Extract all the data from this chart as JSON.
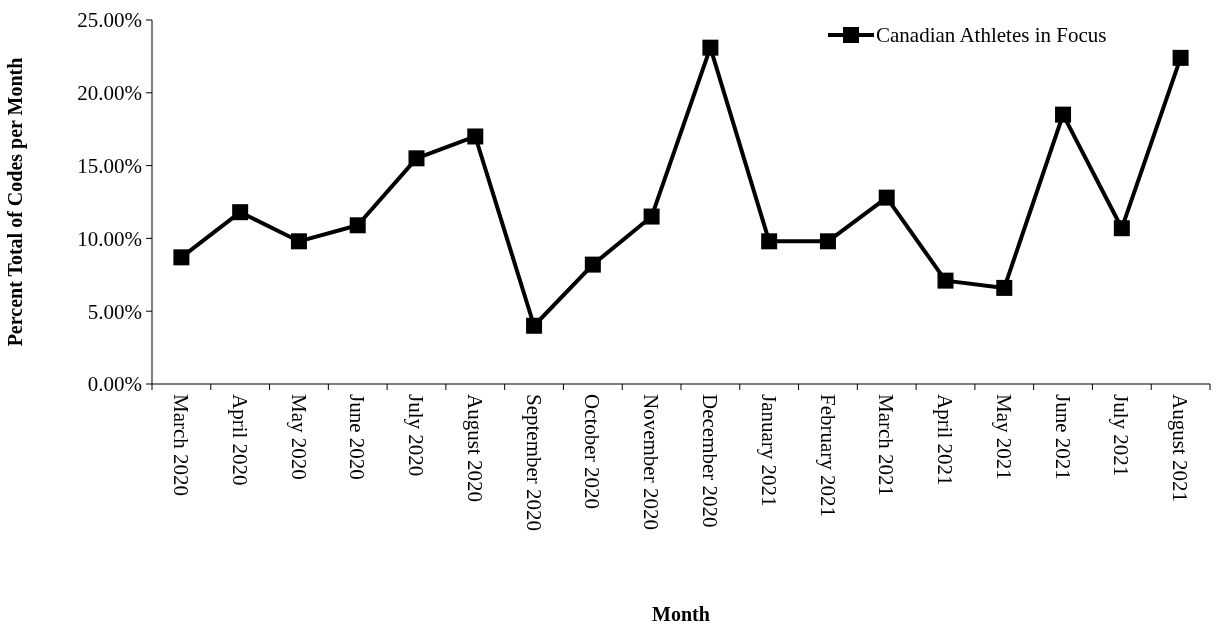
{
  "chart_data": {
    "type": "line",
    "xlabel": "Month",
    "ylabel": "Percent Total of Codes per Month",
    "categories": [
      "March 2020",
      "April 2020",
      "May 2020",
      "June 2020",
      "July 2020",
      "August 2020",
      "September 2020",
      "October 2020",
      "November 2020",
      "December 2020",
      "January 2021",
      "February 2021",
      "March 2021",
      "April 2021",
      "May 2021",
      "June 2021",
      "July 2021",
      "August 2021"
    ],
    "series": [
      {
        "name": "Canadian Athletes in Focus",
        "color": "#000000",
        "values": [
          8.7,
          11.8,
          9.8,
          10.9,
          15.5,
          17.0,
          4.0,
          8.2,
          11.5,
          23.1,
          9.8,
          9.8,
          12.8,
          7.1,
          6.6,
          18.5,
          10.7,
          22.4
        ]
      }
    ],
    "ylim": [
      0,
      25
    ],
    "yticks": [
      {
        "value": 0,
        "label": "0.00%"
      },
      {
        "value": 5,
        "label": "5.00%"
      },
      {
        "value": 10,
        "label": "10.00%"
      },
      {
        "value": 15,
        "label": "15.00%"
      },
      {
        "value": 20,
        "label": "20.00%"
      },
      {
        "value": 25,
        "label": "25.00%"
      }
    ],
    "grid": false,
    "legend": "top right",
    "marker": "square",
    "line_style": "solid"
  }
}
